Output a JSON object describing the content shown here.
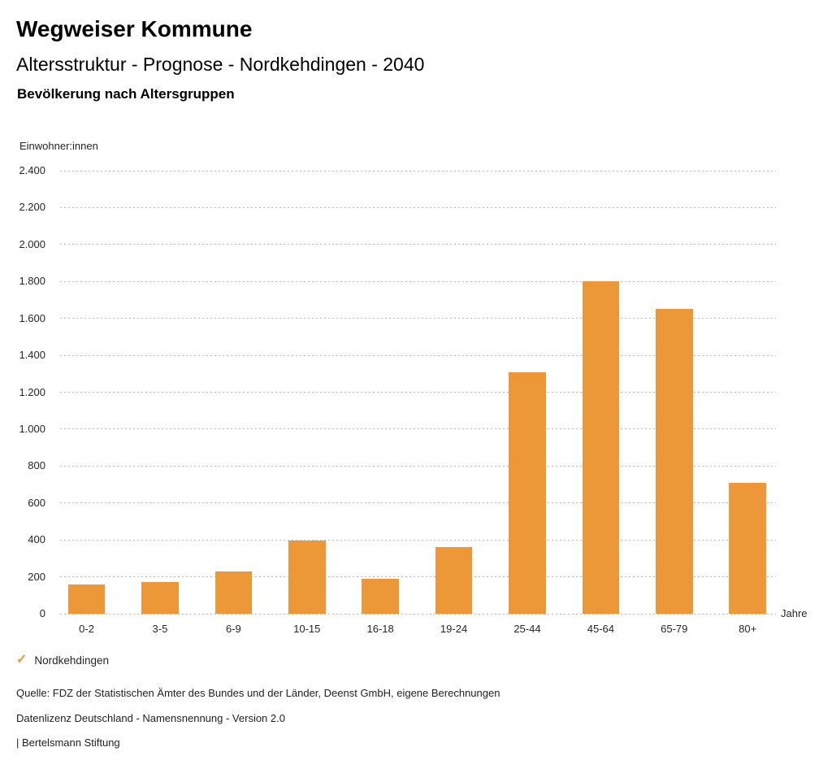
{
  "header": {
    "title": "Wegweiser Kommune",
    "subtitle": "Altersstruktur - Prognose - Nordkehdingen - 2040",
    "chart_heading": "Bevölkerung nach Altersgruppen"
  },
  "chart_data": {
    "type": "bar",
    "title": "Bevölkerung nach Altersgruppen",
    "categories": [
      "0-2",
      "3-5",
      "6-9",
      "10-15",
      "16-18",
      "19-24",
      "25-44",
      "45-64",
      "65-79",
      "80+"
    ],
    "values": [
      160,
      170,
      230,
      395,
      190,
      360,
      1310,
      1800,
      1650,
      710
    ],
    "series_name": "Nordkehdingen",
    "xlabel": "Jahre",
    "ylabel": "Einwohner:innen",
    "ylim": [
      0,
      2400
    ],
    "ytick_step": 200,
    "ytick_labels": [
      "0",
      "200",
      "400",
      "600",
      "800",
      "1.000",
      "1.200",
      "1.400",
      "1.600",
      "1.800",
      "2.000",
      "2.200",
      "2.400"
    ],
    "grid": "horizontal-dotted",
    "legend_position": "bottom-left",
    "bar_color": "#ED9838"
  },
  "legend": {
    "check_icon": "✓",
    "label": "Nordkehdingen",
    "color": "#ED9838"
  },
  "footer": {
    "source": "Quelle: FDZ der Statistischen Ämter des Bundes und der Länder, Deenst GmbH, eigene Berechnungen",
    "license": "Datenlizenz Deutschland - Namensnennung - Version 2.0",
    "publisher": "| Bertelsmann Stiftung"
  }
}
